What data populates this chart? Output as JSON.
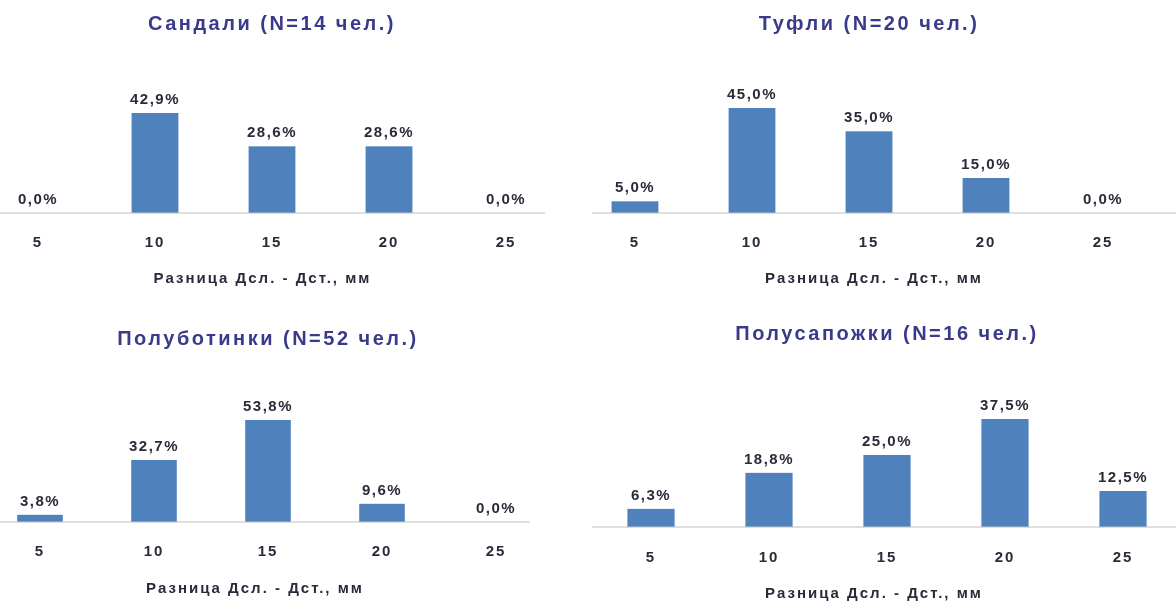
{
  "chart_data": [
    {
      "type": "bar",
      "title": "Сандали (N=14 чел.)",
      "xlabel": "Разница Дсл. - Дст., мм",
      "categories": [
        "5",
        "10",
        "15",
        "20",
        "25"
      ],
      "tick_labels": "x",
      "series": [
        {
          "color": "#4f81bd",
          "values": [
            0.0,
            42.9,
            28.6,
            28.6,
            0.0
          ],
          "value_labels": [
            "0,0%",
            "42,9%",
            "28,6%",
            "28,6%",
            "0,0%"
          ]
        }
      ]
    },
    {
      "type": "bar",
      "title": "Туфли (N=20 чел.)",
      "xlabel": "Разница Дсл. - Дст., мм",
      "categories": [
        "5",
        "10",
        "15",
        "20",
        "25"
      ],
      "tick_labels": "x",
      "series": [
        {
          "color": "#4f81bd",
          "values": [
            5.0,
            45.0,
            35.0,
            15.0,
            0.0
          ],
          "value_labels": [
            "5,0%",
            "45,0%",
            "35,0%",
            "15,0%",
            "0,0%"
          ]
        }
      ]
    },
    {
      "type": "bar",
      "title": "Полуботинки (N=52 чел.)",
      "xlabel": "Разница Дсл. - Дст., мм",
      "categories": [
        "5",
        "10",
        "15",
        "20",
        "25"
      ],
      "tick_labels": "x",
      "series": [
        {
          "color": "#4f81bd",
          "values": [
            3.8,
            32.7,
            53.8,
            9.6,
            0.0
          ],
          "value_labels": [
            "3,8%",
            "32,7%",
            "53,8%",
            "9,6%",
            "0,0%"
          ]
        }
      ]
    },
    {
      "type": "bar",
      "title": "Полусапожки (N=16 чел.)",
      "xlabel": "Разница Дсл. - Дст., мм",
      "categories": [
        "5",
        "10",
        "15",
        "20",
        "25"
      ],
      "tick_labels": "x",
      "series": [
        {
          "color": "#4f81bd",
          "values": [
            6.3,
            18.8,
            25.0,
            37.5,
            12.5
          ],
          "value_labels": [
            "6,3%",
            "18,8%",
            "25,0%",
            "37,5%",
            "12,5%"
          ]
        }
      ]
    }
  ]
}
